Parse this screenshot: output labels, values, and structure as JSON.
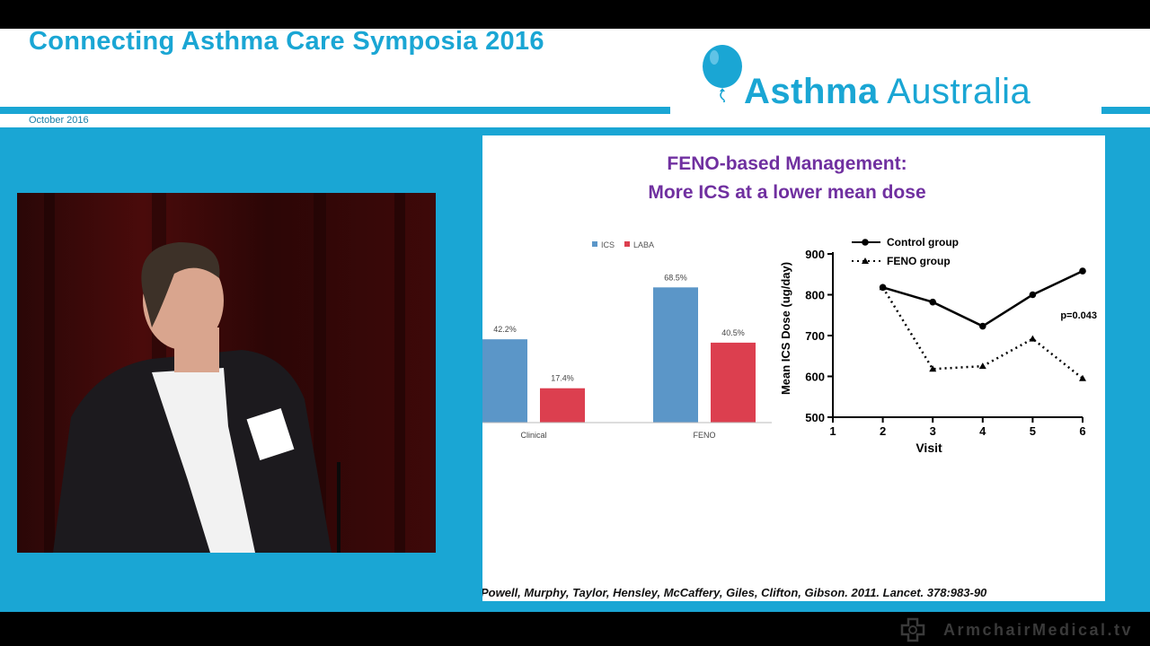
{
  "header": {
    "title": "Connecting Asthma Care Symposia 2016",
    "date": "October 2016",
    "logo_bold": "Asthma",
    "logo_light": "Australia"
  },
  "slide": {
    "title_line1": "FENO-based Management:",
    "title_line2": "More ICS at a lower mean dose",
    "citation": "Powell, Murphy, Taylor, Hensley, McCaffery, Giles, Clifton, Gibson. 2011. Lancet. 378:983-90"
  },
  "watermark": {
    "text": "ArmchairMedical.tv"
  },
  "colors": {
    "brand_blue": "#1aa6d4",
    "title_purple": "#7030a0",
    "ics_blue": "#5b96c8",
    "laba_red": "#dc3f4f"
  },
  "chart_data": [
    {
      "type": "bar",
      "categories": [
        "Clinical",
        "FENO"
      ],
      "series": [
        {
          "name": "ICS",
          "values": [
            42.2,
            68.5
          ],
          "labels": [
            "42.2%",
            "68.5%"
          ],
          "color": "#5b96c8"
        },
        {
          "name": "LABA",
          "values": [
            17.4,
            40.5
          ],
          "labels": [
            "17.4%",
            "40.5%"
          ],
          "color": "#dc3f4f"
        }
      ],
      "legend": "top",
      "ylim": [
        0,
        100
      ]
    },
    {
      "type": "line",
      "xlabel": "Visit",
      "ylabel": "Mean ICS Dose (ug/day)",
      "xticks": [
        "1",
        "2",
        "3",
        "4",
        "5",
        "6"
      ],
      "yticks": [
        "500",
        "600",
        "700",
        "800",
        "900"
      ],
      "xlim": [
        1,
        6
      ],
      "ylim": [
        500,
        900
      ],
      "series": [
        {
          "name": "Control group",
          "x": [
            2,
            3,
            4,
            5,
            6
          ],
          "y": [
            818,
            782,
            723,
            800,
            858
          ],
          "style": "solid",
          "marker": "circle"
        },
        {
          "name": "FENO group",
          "x": [
            2,
            3,
            4,
            5,
            6
          ],
          "y": [
            818,
            618,
            625,
            692,
            595
          ],
          "style": "dotted",
          "marker": "triangle"
        }
      ],
      "annotation": "p=0.043",
      "legend": "top-left"
    }
  ]
}
